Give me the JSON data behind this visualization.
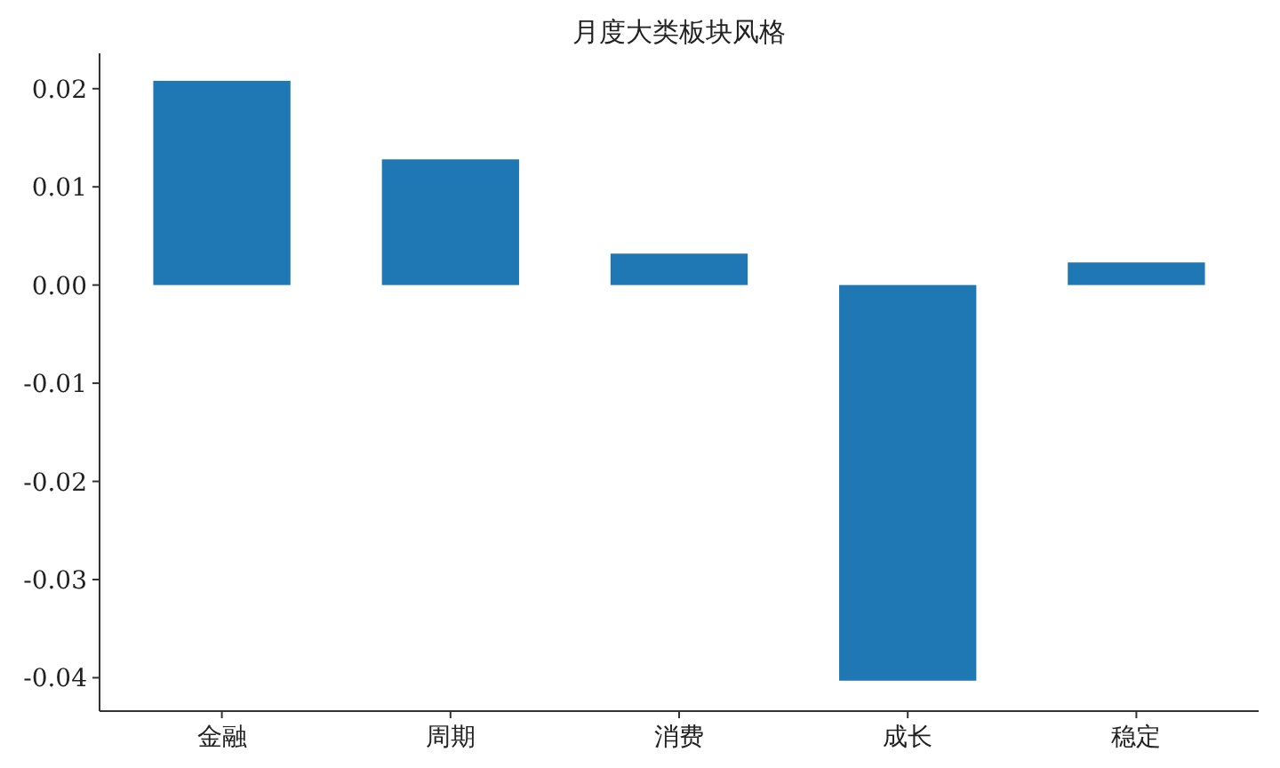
{
  "chart_data": {
    "type": "bar",
    "title": "月度大类板块风格",
    "categories": [
      "金融",
      "周期",
      "消费",
      "成长",
      "稳定"
    ],
    "values": [
      0.0208,
      0.0128,
      0.0032,
      -0.0403,
      0.0023
    ],
    "color": "#1f77b4",
    "ylim": [
      -0.0434,
      0.0236
    ],
    "yticks": [
      {
        "value": -0.04,
        "label": "-0.04"
      },
      {
        "value": -0.03,
        "label": "-0.03"
      },
      {
        "value": -0.02,
        "label": "-0.02"
      },
      {
        "value": -0.01,
        "label": "-0.01"
      },
      {
        "value": 0,
        "label": "0.00"
      },
      {
        "value": 0.01,
        "label": "0.01"
      },
      {
        "value": 0.02,
        "label": "0.02"
      }
    ],
    "grid": false
  }
}
